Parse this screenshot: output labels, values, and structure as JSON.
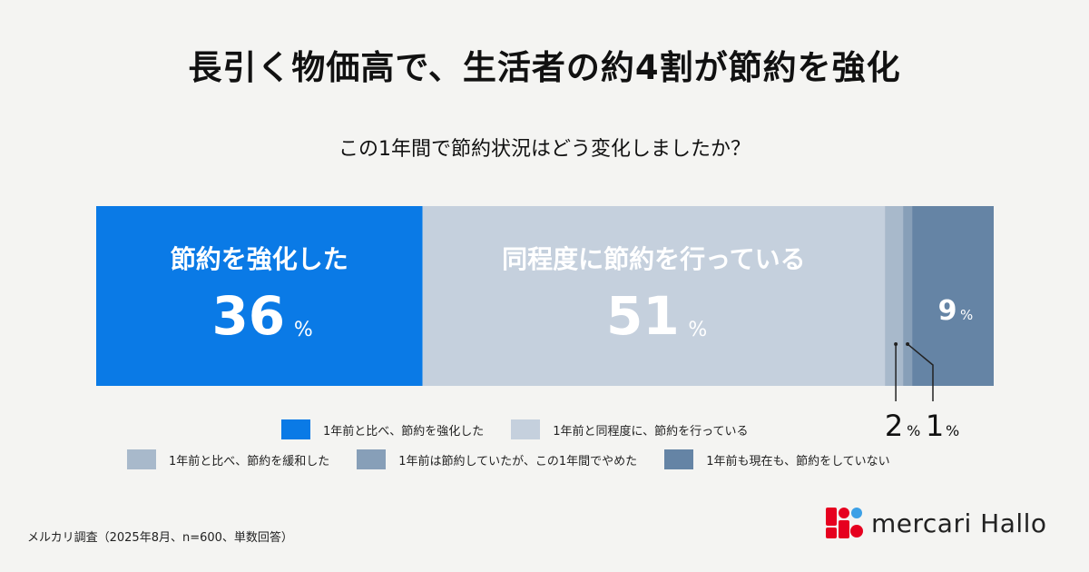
{
  "title": "長引く物価高で、生活者の約4割が節約を強化",
  "subtitle": "この1年間で節約状況はどう変化しましたか？",
  "chart_data": {
    "type": "bar",
    "stacked": "100%",
    "orientation": "horizontal",
    "unit": "%",
    "categories": [
      ""
    ],
    "series": [
      {
        "name": "1年前と比べ、節約を強化した",
        "label": "節約を強化した",
        "values": [
          36
        ],
        "display": "36",
        "color": "#0a7ae6"
      },
      {
        "name": "1年前と同程度に、節約を行っている",
        "label": "同程度に節約を行っている",
        "values": [
          51
        ],
        "display": "51",
        "color": "#c5d0dd"
      },
      {
        "name": "1年前と比べ、節約を緩和した",
        "label": "",
        "values": [
          2
        ],
        "display": "2",
        "color": "#a8b9cb"
      },
      {
        "name": "1年前は節約していたが、この1年間でやめた",
        "label": "",
        "values": [
          1
        ],
        "display": "1",
        "color": "#879fb8"
      },
      {
        "name": "1年前も現在も、節約をしていない",
        "label": "",
        "values": [
          9
        ],
        "display": "9",
        "color": "#6584a5"
      }
    ],
    "legend_placement": "bottom",
    "grid": false
  },
  "percent_sign": "%",
  "source": "メルカリ調査（2025年8月、n=600、単数回答）",
  "logo": {
    "text": "mercari Hallo",
    "colors": [
      "#e6001f",
      "#3ca0e6"
    ]
  }
}
